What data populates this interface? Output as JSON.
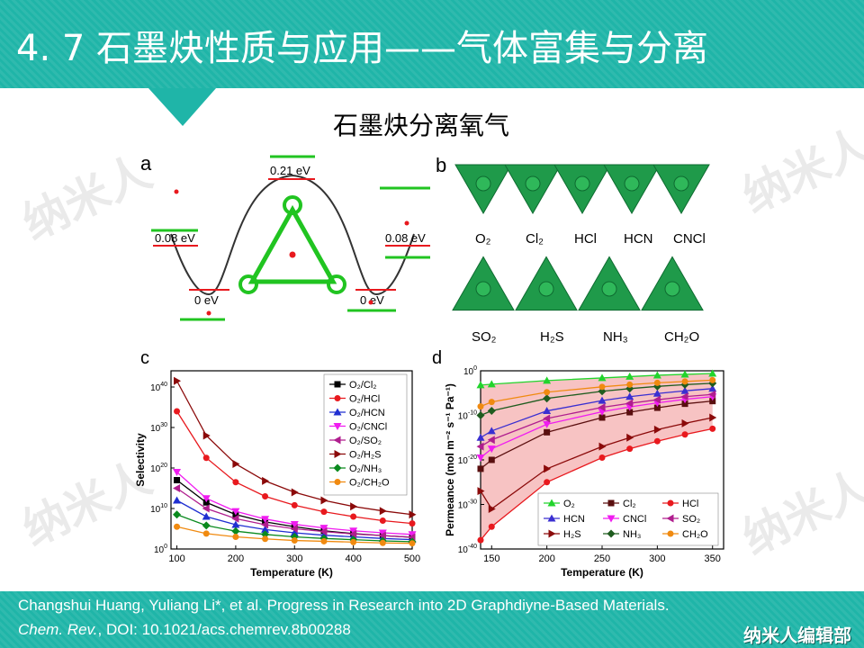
{
  "header": {
    "title": "4. 7 石墨炔性质与应用——气体富集与分离"
  },
  "subtitle": "石墨炔分离氧气",
  "watermark": "纳米人",
  "panels": {
    "a": {
      "label": "a",
      "energies": [
        "0.21 eV",
        "0.08 eV",
        "0.08 eV",
        "0 eV",
        "0 eV"
      ]
    },
    "b": {
      "label": "b",
      "gases_row1": [
        "O₂",
        "Cl₂",
        "HCl",
        "HCN",
        "CNCl"
      ],
      "gases_row2": [
        "SO₂",
        "H₂S",
        "NH₃",
        "CH₂O"
      ]
    }
  },
  "chart_data": [
    {
      "panel": "c",
      "type": "line",
      "scale": "log",
      "xlabel": "Temperature (K)",
      "ylabel": "Selectivity",
      "xlim": [
        90,
        500
      ],
      "ylim_exponent": [
        0,
        44
      ],
      "xticks": [
        100,
        200,
        300,
        400,
        500
      ],
      "yticks": [
        {
          "base": "10",
          "exp": "0",
          "v": 0
        },
        {
          "base": "10",
          "exp": "10",
          "v": 10
        },
        {
          "base": "10",
          "exp": "20",
          "v": 20
        },
        {
          "base": "10",
          "exp": "30",
          "v": 30
        },
        {
          "base": "10",
          "exp": "40",
          "v": 40
        }
      ],
      "legend_position": "top-right",
      "x": [
        100,
        150,
        200,
        250,
        300,
        350,
        400,
        450,
        500
      ],
      "series": [
        {
          "name": "O₂/Cl₂",
          "color": "#000000",
          "marker": "square",
          "log10": [
            17,
            11.5,
            8.5,
            6.7,
            5.5,
            4.5,
            3.8,
            3.3,
            2.9
          ]
        },
        {
          "name": "O₂/HCl",
          "color": "#e8191e",
          "marker": "circle",
          "log10": [
            34,
            22.5,
            16.5,
            13,
            10.8,
            9.2,
            8,
            7,
            6.3
          ]
        },
        {
          "name": "O₂/HCN",
          "color": "#1f2fd1",
          "marker": "triangle",
          "log10": [
            12,
            8,
            6,
            4.8,
            4,
            3.4,
            3,
            2.6,
            2.3
          ]
        },
        {
          "name": "O₂/CNCl",
          "color": "#f01cf0",
          "marker": "tri-down",
          "log10": [
            19,
            12.5,
            9.3,
            7.4,
            6.1,
            5.2,
            4.5,
            4,
            3.6
          ]
        },
        {
          "name": "O₂/SO₂",
          "color": "#b01e8e",
          "marker": "tri-left",
          "log10": [
            15,
            10,
            7.5,
            6,
            5,
            4.3,
            3.7,
            3.3,
            2.9
          ]
        },
        {
          "name": "O₂/H₂S",
          "color": "#8b0a0a",
          "marker": "tri-right",
          "log10": [
            41.5,
            28,
            21,
            16.8,
            14,
            12,
            10.5,
            9.4,
            8.5
          ]
        },
        {
          "name": "O₂/NH₃",
          "color": "#0a8a1e",
          "marker": "diamond",
          "log10": [
            8.5,
            5.8,
            4.4,
            3.6,
            3,
            2.6,
            2.3,
            2,
            1.8
          ]
        },
        {
          "name": "O₂/CH₂O",
          "color": "#f08a10",
          "marker": "circle",
          "log10": [
            5.5,
            3.8,
            3,
            2.5,
            2.1,
            1.9,
            1.7,
            1.5,
            1.4
          ]
        }
      ]
    },
    {
      "panel": "d",
      "type": "line",
      "scale": "log",
      "xlabel": "Temperature (K)",
      "ylabel": "Permeance (mol m⁻² s⁻¹ Pa⁻¹)",
      "xlim": [
        140,
        360
      ],
      "ylim_exponent": [
        -40,
        0
      ],
      "xticks": [
        150,
        200,
        250,
        300,
        350
      ],
      "yticks": [
        {
          "base": "10",
          "exp": "0",
          "v": 0
        },
        {
          "base": "10",
          "exp": "-10",
          "v": -10
        },
        {
          "base": "10",
          "exp": "-20",
          "v": -20
        },
        {
          "base": "10",
          "exp": "-30",
          "v": -30
        },
        {
          "base": "10",
          "exp": "-40",
          "v": -40
        }
      ],
      "legend_position": "bottom-left",
      "shaded_region": "between O₂ and HCl curves (pink)",
      "x": [
        140,
        150,
        200,
        250,
        275,
        300,
        325,
        350
      ],
      "series": [
        {
          "name": "O₂",
          "color": "#22d42c",
          "marker": "tri-up",
          "log10": [
            -3.2,
            -3,
            -2.2,
            -1.6,
            -1.3,
            -1.0,
            -0.8,
            -0.6
          ]
        },
        {
          "name": "Cl₂",
          "color": "#5a0f0f",
          "marker": "square",
          "log10": [
            -22,
            -20,
            -13.8,
            -10.5,
            -9.3,
            -8.3,
            -7.4,
            -6.8
          ]
        },
        {
          "name": "HCl",
          "color": "#e8191e",
          "marker": "circle",
          "log10": [
            -38,
            -35,
            -25,
            -19.5,
            -17.5,
            -15.8,
            -14.3,
            -13
          ]
        },
        {
          "name": "HCN",
          "color": "#3a2fd1",
          "marker": "tri-up",
          "log10": [
            -15,
            -13.5,
            -9,
            -6.7,
            -5.8,
            -5.1,
            -4.5,
            -4
          ]
        },
        {
          "name": "CNCl",
          "color": "#f01cf0",
          "marker": "tri-down",
          "log10": [
            -19.5,
            -17.5,
            -12,
            -9.2,
            -8.1,
            -7.2,
            -6.4,
            -5.8
          ]
        },
        {
          "name": "SO₂",
          "color": "#b01e8e",
          "marker": "tri-left",
          "log10": [
            -17,
            -15.5,
            -10.7,
            -8.2,
            -7.3,
            -6.5,
            -5.8,
            -5.3
          ]
        },
        {
          "name": "H₂S",
          "color": "#8b0a0a",
          "marker": "tri-right",
          "log10": [
            -27,
            -31,
            -22,
            -17,
            -15,
            -13.2,
            -11.8,
            -10.5
          ]
        },
        {
          "name": "NH₃",
          "color": "#1f5c1f",
          "marker": "diamond",
          "log10": [
            -10,
            -9,
            -6.2,
            -4.6,
            -4,
            -3.5,
            -3.1,
            -2.8
          ]
        },
        {
          "name": "CH₂O",
          "color": "#f08a10",
          "marker": "circle",
          "log10": [
            -8,
            -7,
            -4.8,
            -3.6,
            -3.1,
            -2.7,
            -2.4,
            -2.1
          ]
        }
      ]
    }
  ],
  "footer": {
    "citation_line1": "Changshui Huang, Yuliang Li*, et al. Progress in Research into 2D Graphdiyne-Based Materials.",
    "journal": "Chem. Rev.",
    "citation_line2_rest": ", DOI: 10.1021/acs.chemrev.8b00288",
    "brand": "纳米人编辑部"
  }
}
